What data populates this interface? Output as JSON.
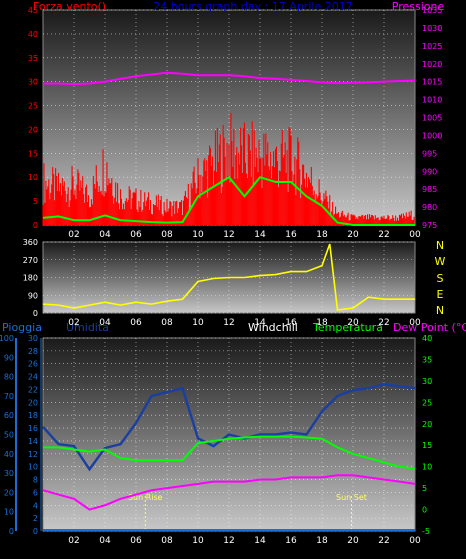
{
  "panel1": {
    "title_left": "Forza vento()",
    "title_center": "24 hours graph day : 17 Aprile 2017",
    "title_right": "Pressione",
    "colors": {
      "left": "#ff0000",
      "center": "#0000cc",
      "right": "#ff00ff",
      "axis": "#ffffff"
    }
  },
  "panel2": {
    "direction_labels": [
      "N",
      "W",
      "S",
      "E",
      "N"
    ],
    "colors": {
      "direction": "#ffff00",
      "axis": "#ffffff"
    }
  },
  "panel3": {
    "title_pioggia": "Pioggia",
    "title_umidita": "Umidita",
    "title_windchill": "Windchill",
    "title_temperatura": "Temperatura",
    "title_dewpoint": "Dew Point (°C)",
    "sunrise_label": "Sun Rise",
    "sunset_label": "Sun Set",
    "colors": {
      "pioggia": "#1a6fd6",
      "umidita": "#1a3fa0",
      "windchill": "#ffffff",
      "temperatura": "#00ff00",
      "dewpoint": "#ff00ff",
      "sun": "#ffff66"
    }
  },
  "chart_data": [
    {
      "type": "line",
      "x_ticks": [
        "02",
        "04",
        "06",
        "08",
        "10",
        "12",
        "14",
        "16",
        "18",
        "20",
        "22",
        "00"
      ],
      "ylim_left": [
        0,
        45
      ],
      "ylim_right": [
        975,
        1035
      ],
      "y_ticks_left": [
        0,
        5,
        10,
        15,
        20,
        25,
        30,
        35,
        40,
        45
      ],
      "y_ticks_right": [
        975,
        980,
        985,
        990,
        995,
        1000,
        1005,
        1010,
        1015,
        1020,
        1025,
        1030,
        1035
      ],
      "grid": true,
      "series": [
        {
          "name": "Pressione",
          "axis": "right",
          "color": "#ff00ff",
          "x": [
            0,
            1,
            2,
            3,
            4,
            5,
            6,
            7,
            8,
            9,
            10,
            11,
            12,
            13,
            14,
            15,
            16,
            17,
            18,
            19,
            20,
            21,
            22,
            23,
            24
          ],
          "y": [
            1014.5,
            1014.5,
            1014.3,
            1014.5,
            1015.0,
            1015.8,
            1016.5,
            1017.0,
            1017.5,
            1017.2,
            1016.8,
            1016.8,
            1016.8,
            1016.5,
            1016.0,
            1015.8,
            1015.5,
            1015.2,
            1014.8,
            1014.6,
            1014.7,
            1014.8,
            1015.0,
            1015.2,
            1015.3
          ]
        },
        {
          "name": "Raffica",
          "axis": "left",
          "color": "#ff0000",
          "style": "bars",
          "x": [
            0,
            1,
            2,
            3,
            4,
            5,
            6,
            7,
            8,
            9,
            10,
            11,
            12,
            13,
            14,
            15,
            16,
            17,
            18,
            19,
            20,
            21,
            22,
            23,
            24
          ],
          "y": [
            12,
            10,
            11,
            8,
            17,
            8,
            7,
            6,
            5,
            5,
            13,
            17,
            21,
            19,
            19,
            18,
            18,
            14,
            8,
            3,
            2,
            2,
            2,
            2,
            3
          ]
        },
        {
          "name": "Vento medio",
          "axis": "left",
          "color": "#00ff00",
          "x": [
            0,
            1,
            2,
            3,
            4,
            5,
            6,
            7,
            8,
            9,
            10,
            11,
            12,
            13,
            14,
            15,
            16,
            17,
            18,
            19,
            20,
            21,
            22,
            23,
            24
          ],
          "y": [
            1.5,
            1.8,
            1.0,
            1.0,
            2.0,
            1.0,
            0.8,
            0.6,
            0.5,
            0.6,
            6,
            8,
            10,
            6,
            10,
            9,
            9,
            6,
            4,
            0.5,
            0,
            0,
            0,
            0,
            0
          ]
        }
      ]
    },
    {
      "type": "line",
      "x_ticks": [
        "02",
        "04",
        "06",
        "08",
        "10",
        "12",
        "14",
        "16",
        "18",
        "20",
        "22",
        "00"
      ],
      "ylim": [
        0,
        360
      ],
      "y_ticks": [
        0,
        90,
        180,
        270,
        360
      ],
      "grid": true,
      "series": [
        {
          "name": "Direzione vento",
          "color": "#ffff00",
          "x": [
            0,
            1,
            2,
            3,
            4,
            5,
            6,
            7,
            8,
            9,
            10,
            11,
            12,
            13,
            14,
            15,
            16,
            17,
            18,
            18.5,
            19,
            20,
            21,
            22,
            23,
            24
          ],
          "y": [
            45,
            40,
            25,
            40,
            55,
            40,
            55,
            45,
            60,
            70,
            160,
            175,
            180,
            180,
            190,
            195,
            210,
            210,
            240,
            350,
            15,
            25,
            80,
            70,
            70,
            70
          ]
        }
      ]
    },
    {
      "type": "line",
      "x_ticks": [
        "02",
        "04",
        "06",
        "08",
        "10",
        "12",
        "14",
        "16",
        "18",
        "20",
        "22",
        "00"
      ],
      "ylim_left": [
        0,
        100
      ],
      "ylim_right": [
        -5,
        40
      ],
      "y_ticks_left_umidita": [
        0,
        10,
        20,
        30,
        40,
        50,
        60,
        70,
        80,
        90,
        100
      ],
      "y_ticks_left_pioggia": [
        0,
        2,
        4,
        6,
        8,
        10,
        12,
        14,
        16,
        18,
        20,
        22,
        24,
        26,
        28,
        30
      ],
      "y_ticks_right": [
        -5,
        0,
        5,
        10,
        15,
        20,
        25,
        30,
        35,
        40
      ],
      "grid": true,
      "series": [
        {
          "name": "Umidita",
          "axis": "left",
          "color": "#1a3fa0",
          "x": [
            0,
            1,
            2,
            3,
            4,
            5,
            6,
            7,
            8,
            9,
            10,
            11,
            12,
            13,
            14,
            15,
            16,
            17,
            18,
            19,
            20,
            21,
            22,
            23,
            24
          ],
          "y": [
            54,
            45,
            44,
            32,
            43,
            45,
            56,
            70,
            72,
            74,
            48,
            44,
            50,
            48,
            50,
            50,
            51,
            50,
            62,
            70,
            73,
            74,
            76,
            75,
            74
          ]
        },
        {
          "name": "Temperatura",
          "axis": "right",
          "color": "#00ff00",
          "x": [
            0,
            1,
            2,
            3,
            4,
            5,
            6,
            7,
            8,
            9,
            10,
            11,
            12,
            13,
            14,
            15,
            16,
            17,
            18,
            19,
            20,
            21,
            22,
            23,
            24
          ],
          "y": [
            14.5,
            14.5,
            14.0,
            13.5,
            14.0,
            12.0,
            11.5,
            11.5,
            11.5,
            11.5,
            15.5,
            16.0,
            16.5,
            16.8,
            17.0,
            17.0,
            17.0,
            16.8,
            16.5,
            14.5,
            13.0,
            12.0,
            11.0,
            10.0,
            9.5
          ]
        },
        {
          "name": "Dew Point",
          "axis": "right",
          "color": "#ff00ff",
          "x": [
            0,
            1,
            2,
            3,
            4,
            5,
            6,
            7,
            8,
            9,
            10,
            11,
            12,
            13,
            14,
            15,
            16,
            17,
            18,
            19,
            20,
            21,
            22,
            23,
            24
          ],
          "y": [
            4.5,
            3.5,
            2.5,
            0.0,
            1.0,
            2.5,
            3.5,
            4.5,
            5.0,
            5.5,
            6.0,
            6.5,
            6.5,
            6.5,
            7.0,
            7.0,
            7.5,
            7.5,
            7.5,
            8.0,
            8.0,
            7.5,
            7.0,
            6.5,
            6.0
          ]
        },
        {
          "name": "Pioggia",
          "axis": "left",
          "color": "#1a6fd6",
          "x": [
            0,
            24
          ],
          "y": [
            0,
            0
          ]
        }
      ],
      "annotations": [
        {
          "label": "Sun Rise",
          "x": 6.6
        },
        {
          "label": "Sun Set",
          "x": 19.9
        }
      ]
    }
  ]
}
